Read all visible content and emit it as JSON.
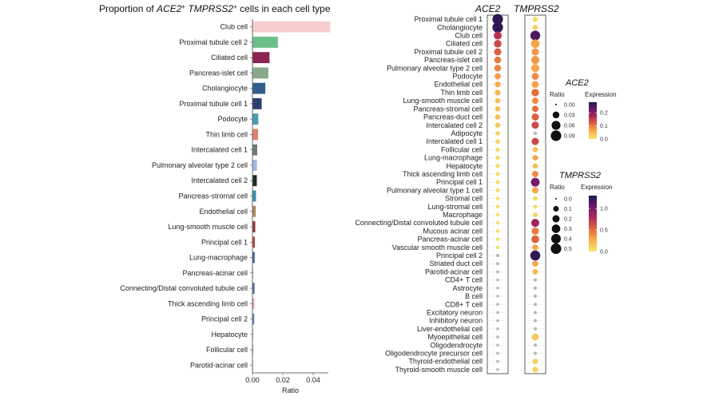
{
  "chart_data": [
    {
      "type": "bar",
      "orientation": "horizontal",
      "title_parts": [
        "Proportion of ",
        "ACE2",
        "+",
        " ",
        "TMPRSS2",
        "+",
        " cells in each cell type"
      ],
      "xlabel": "Ratio",
      "xlim": [
        0,
        0.05
      ],
      "xticks": [
        "0.00",
        "0.02",
        "0.04"
      ],
      "xtick_values": [
        0,
        0.02,
        0.04
      ],
      "categories": [
        "Club cell",
        "Proximal tubule cell 2",
        "Ciliated cell",
        "Pancreas-islet cell",
        "Cholangiocyte",
        "Proximal tubule cell 1",
        "Podocyte",
        "Thin limb cell",
        "Intercalated cell 1",
        "Pulmonary alveolar type 2 cell",
        "Intercalated cell 2",
        "Pancreas-stromal cell",
        "Endothelial cell",
        "Lung-smooth muscle cell",
        "Principal cell 1",
        "Lung-macrophage",
        "Pancreas-acinar cell",
        "Connecting/Distal convoluted tubule cell",
        "Thick ascending limb cell",
        "Principal cell 2",
        "Hepatocyte",
        "Follicular cell",
        "Parotid-acinar cell"
      ],
      "values": [
        0.051,
        0.0165,
        0.011,
        0.0102,
        0.0082,
        0.0058,
        0.0036,
        0.0034,
        0.0029,
        0.0027,
        0.0026,
        0.0021,
        0.0019,
        0.0016,
        0.0013,
        0.0012,
        0.0003,
        0.0011,
        0.001,
        0.0009,
        0.0004,
        0.0002,
        0.0001
      ],
      "colors": [
        "#f7cdcd",
        "#6cbf8a",
        "#8c2553",
        "#8aa88c",
        "#2f5f8a",
        "#2d3e6e",
        "#4a9ab4",
        "#e28070",
        "#6e7a78",
        "#9fb9dd",
        "#1d2b24",
        "#3c91a8",
        "#a88a5c",
        "#8e3a3a",
        "#c03f39",
        "#3f5fa8",
        "#cfcfcf",
        "#4b6fa5",
        "#e7a7ba",
        "#5b86c1",
        "#ddd3a5",
        "#c8b7d5",
        "#e4d2b5"
      ]
    },
    {
      "type": "scatter",
      "subtype": "dotplot",
      "columns": [
        "ACE2",
        "TMPRSS2"
      ],
      "categories": [
        "Proximal tubule cell 1",
        "Cholangiocyte",
        "Club cell",
        "Ciliated cell",
        "Proximal tubule cell 2",
        "Pancreas-islet cell",
        "Pulmonary alveolar type 2 cell",
        "Podocyte",
        "Endothelial cell",
        "Thin limb cell",
        "Lung-smooth muscle cell",
        "Pancreas-stromal cell",
        "Pancreas-duct cell",
        "Intercalated cell 2",
        "Adipocyte",
        "Intercalated cell 1",
        "Follicular cell",
        "Lung-macrophage",
        "Hepatocyte",
        "Thick ascending limb cell",
        "Principal cell 1",
        "Pulmonary alveolar type 1 cell",
        "Stromal cell",
        "Lung-stromal cell",
        "Macrophage",
        "Connecting/Distal convoluted tubule cell",
        "Mucous acinar cell",
        "Pancreas-acinar cell",
        "Vascular smooth muscle cell",
        "Principal cell 2",
        "Striated duct cell",
        "Parotid-acinar cell",
        "CD4+ T cell",
        "Astrocyte",
        "B cell",
        "CD8+ T cell",
        "Excitatory neuron",
        "Inhibitory neuron",
        "Liver-endothelial cell",
        "Myoepithelial cell",
        "Oligodendrocyte",
        "Oligodendrocyte precursor cell",
        "Thyroid-endothelial cell",
        "Thyroid-smooth muscle cell"
      ],
      "ace2_ratio": [
        0.09,
        0.09,
        0.045,
        0.04,
        0.035,
        0.03,
        0.03,
        0.025,
        0.02,
        0.02,
        0.015,
        0.015,
        0.015,
        0.015,
        0.01,
        0.01,
        0.008,
        0.008,
        0.008,
        0.007,
        0.006,
        0.006,
        0.005,
        0.005,
        0.005,
        0.004,
        0.004,
        0.004,
        0.004,
        0.003,
        0.003,
        0.003,
        0.002,
        0.002,
        0.002,
        0.002,
        0.002,
        0.002,
        0.002,
        0.002,
        0.002,
        0.002,
        0.002,
        0.002
      ],
      "ace2_expression": [
        0.27,
        0.27,
        0.16,
        0.14,
        0.12,
        0.1,
        0.09,
        0.07,
        0.06,
        0.05,
        0.04,
        0.04,
        0.04,
        0.03,
        0.02,
        0.02,
        0.01,
        0.01,
        0.01,
        0.01,
        0.01,
        0.01,
        0.005,
        0.005,
        0.005,
        0.005,
        0.005,
        0.005,
        0.005,
        0,
        0,
        0,
        0,
        0,
        0,
        0,
        0,
        0,
        0,
        0,
        0,
        0,
        0,
        0
      ],
      "tmprss2_ratio": [
        0.08,
        0.08,
        0.42,
        0.3,
        0.2,
        0.26,
        0.26,
        0.18,
        0.18,
        0.22,
        0.14,
        0.14,
        0.2,
        0.2,
        0.02,
        0.2,
        0.08,
        0.1,
        0.08,
        0.14,
        0.32,
        0.14,
        0.06,
        0.04,
        0.06,
        0.26,
        0.2,
        0.24,
        0.12,
        0.44,
        0.12,
        0.1,
        0.02,
        0.02,
        0.02,
        0.02,
        0.02,
        0.02,
        0.02,
        0.18,
        0.02,
        0.02,
        0.1,
        0.1
      ],
      "tmprss2_expression": [
        0.05,
        0.1,
        1.15,
        0.3,
        0.35,
        0.35,
        0.3,
        0.4,
        0.3,
        0.5,
        0.4,
        0.5,
        0.55,
        0.65,
        0,
        0.65,
        0.2,
        0.3,
        0.2,
        0.4,
        1.0,
        0.3,
        0.05,
        0.05,
        0.1,
        0.85,
        0.45,
        0.55,
        0.3,
        1.25,
        0.3,
        0.2,
        0,
        0,
        0,
        0,
        0,
        0,
        0,
        0.15,
        0,
        0,
        0.1,
        0.1
      ],
      "legends": {
        "ace2": {
          "title": "ACE2",
          "ratio_label": "Ratio",
          "ratio_ticks": [
            "0.00",
            "0.03",
            "0.06",
            "0.09"
          ],
          "ratio_values": [
            0,
            0.03,
            0.06,
            0.09
          ],
          "expr_label": "Expression",
          "expr_ticks": [
            "0.2",
            "0.1",
            "0.0"
          ],
          "expr_values": [
            0.2,
            0.1,
            0.0
          ],
          "expr_max": 0.28
        },
        "tmprss2": {
          "title": "TMPRSS2",
          "ratio_label": "Ratio",
          "ratio_ticks": [
            "0.0",
            "0.1",
            "0.2",
            "0.3",
            "0.4",
            "0.5"
          ],
          "ratio_values": [
            0,
            0.1,
            0.2,
            0.3,
            0.4,
            0.5
          ],
          "expr_label": "Expression",
          "expr_ticks": [
            "1.0",
            "0.5",
            "0.0"
          ],
          "expr_values": [
            1.0,
            0.5,
            0.0
          ],
          "expr_max": 1.3
        }
      },
      "colormap": [
        "#f4e66b",
        "#f8b04a",
        "#e2693d",
        "#b22a5a",
        "#6b1a6e",
        "#1f1a4d"
      ]
    }
  ]
}
